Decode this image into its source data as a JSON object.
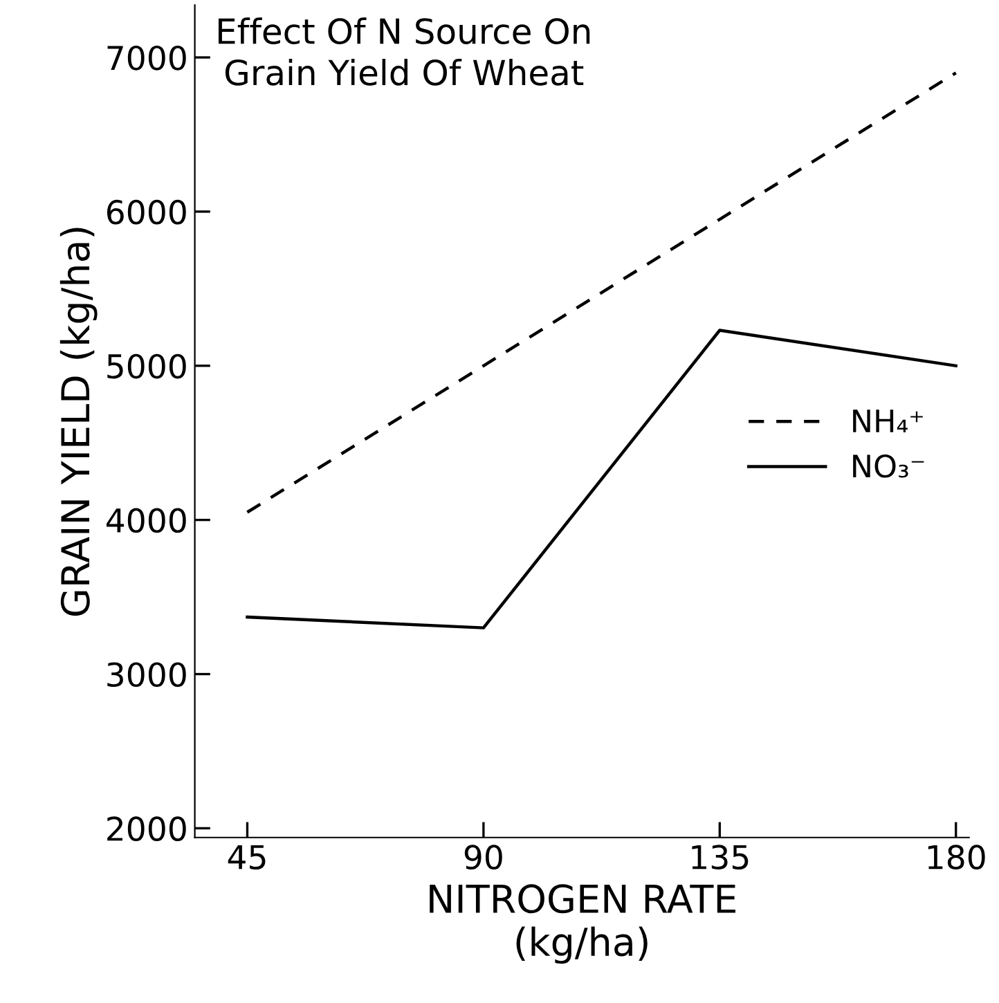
{
  "chart_data": {
    "type": "line",
    "title": "Effect Of N Source On\nGrain Yield Of Wheat",
    "xlabel": "NITROGEN RATE\n(kg/ha)",
    "ylabel": "GRAIN YIELD (kg/ha)",
    "x": [
      45,
      90,
      135,
      180
    ],
    "series": [
      {
        "name": "NH₄⁺",
        "color": "#000000",
        "line_style": "dashed",
        "values": [
          4050,
          5000,
          5950,
          6900
        ]
      },
      {
        "name": "NO₃⁻",
        "color": "#000000",
        "line_style": "solid",
        "values": [
          3370,
          3300,
          5230,
          5000
        ]
      }
    ],
    "xlim": [
      35,
      182.5
    ],
    "ylim": [
      1940,
      7340
    ],
    "xticks": [
      45,
      90,
      135,
      180
    ],
    "yticks": [
      2000,
      3000,
      4000,
      5000,
      6000,
      7000
    ],
    "grid": false,
    "legend": "right",
    "marker": "none"
  }
}
